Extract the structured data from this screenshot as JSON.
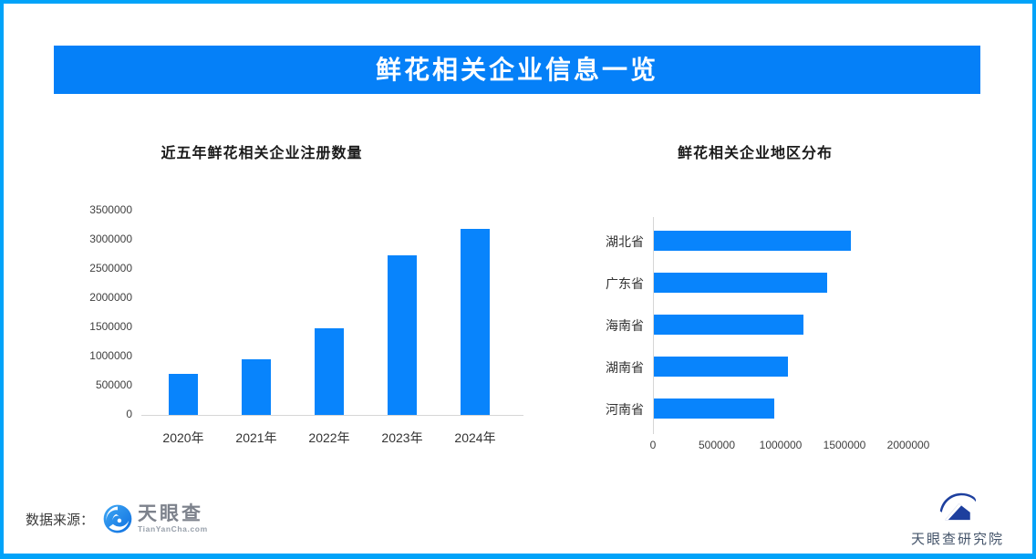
{
  "page": {
    "banner_title": "鲜花相关企业信息一览",
    "footer": {
      "source_label": "数据来源："
    },
    "brand": {
      "name": "天眼查",
      "domain": "TianYanCha.com",
      "institute": "天眼查研究院"
    },
    "colors": {
      "frame_border": "#01a3f9",
      "banner_blue": "#0580f8",
      "bar_blue": "#0884fc",
      "axis_gray": "#d6d6d6",
      "tianyancha_icon_blue": "#1580ee",
      "institute_icon_navy": "#1d3f9e"
    }
  },
  "chart_data": [
    {
      "type": "bar",
      "title": "近五年鲜花相关企业注册数量",
      "categories": [
        "2020年",
        "2021年",
        "2022年",
        "2023年",
        "2024年"
      ],
      "values": [
        700000,
        950000,
        1480000,
        2730000,
        3190000
      ],
      "xlabel": "",
      "ylabel": "",
      "ylim": [
        0,
        3500000
      ],
      "yticks": [
        0,
        500000,
        1000000,
        1500000,
        2000000,
        2500000,
        3000000,
        3500000
      ],
      "grid": false,
      "legend": "none",
      "bar_color": "#0884fc"
    },
    {
      "type": "bar",
      "orientation": "horizontal",
      "title": "鲜花相关企业地区分布",
      "categories": [
        "湖北省",
        "广东省",
        "海南省",
        "湖南省",
        "河南省"
      ],
      "values": [
        1540000,
        1360000,
        1170000,
        1050000,
        940000
      ],
      "xlabel": "",
      "ylabel": "",
      "xlim": [
        0,
        2000000
      ],
      "xticks": [
        0,
        500000,
        1000000,
        1500000,
        2000000
      ],
      "grid": false,
      "legend": "none",
      "bar_color": "#0884fc"
    }
  ]
}
